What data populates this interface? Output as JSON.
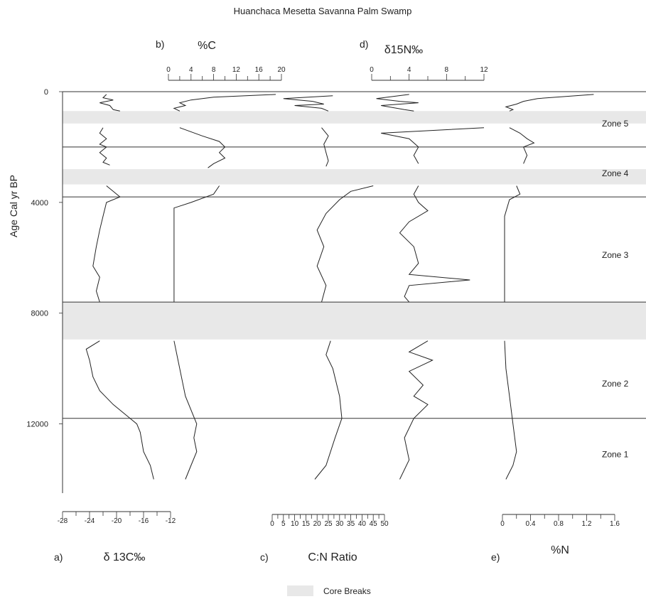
{
  "chart_data": {
    "type": "line",
    "title": "Huanchaca Mesetta Savanna Palm Swamp",
    "ylabel": "Age Cal yr BP",
    "ylim": [
      0,
      14500
    ],
    "y_ticks": [
      0,
      4000,
      8000,
      12000
    ],
    "legend": {
      "label": "Core Breaks",
      "color": "#e8e8e8",
      "placement": "bottom"
    },
    "core_breaks": [
      [
        700,
        1150
      ],
      [
        2800,
        3350
      ],
      [
        7600,
        8950
      ]
    ],
    "zone_boundaries": [
      2000,
      3800,
      7600,
      11800
    ],
    "zones": [
      {
        "label": "Zone 5",
        "age": 1150
      },
      {
        "label": "Zone 4",
        "age": 2950
      },
      {
        "label": "Zone 3",
        "age": 5900
      },
      {
        "label": "Zone 2",
        "age": 10550
      },
      {
        "label": "Zone 1",
        "age": 13100
      }
    ],
    "panels": [
      {
        "letter": "a)",
        "xlabel": "δ 13C‰",
        "axis": "bottom",
        "xlim": [
          -28,
          -12
        ],
        "ticks": [
          -28,
          -24,
          -20,
          -16,
          -12
        ],
        "series": [
          [
            [
              -21.5,
              100
            ],
            [
              -22,
              220
            ],
            [
              -20.5,
              300
            ],
            [
              -22.5,
              400
            ],
            [
              -21,
              500
            ],
            [
              -20.5,
              650
            ],
            [
              -19.5,
              700
            ]
          ],
          [
            [
              -22,
              1300
            ],
            [
              -22.5,
              1500
            ],
            [
              -21.5,
              1700
            ],
            [
              -22.5,
              1900
            ],
            [
              -21.5,
              2000
            ],
            [
              -22.5,
              2200
            ],
            [
              -21.5,
              2400
            ],
            [
              -22,
              2550
            ],
            [
              -21,
              2650
            ]
          ],
          [
            [
              -21.5,
              3400
            ],
            [
              -20.5,
              3600
            ],
            [
              -19.5,
              3800
            ],
            [
              -21.5,
              4000
            ],
            [
              -22,
              4500
            ],
            [
              -22.5,
              5000
            ],
            [
              -23,
              5600
            ],
            [
              -23.5,
              6300
            ],
            [
              -22.5,
              6700
            ],
            [
              -23,
              7200
            ],
            [
              -22.5,
              7600
            ]
          ],
          [
            [
              -22.5,
              9000
            ],
            [
              -24.5,
              9300
            ],
            [
              -24,
              9700
            ],
            [
              -23.5,
              10300
            ],
            [
              -22.5,
              10800
            ],
            [
              -20.5,
              11300
            ],
            [
              -18,
              11800
            ],
            [
              -17,
              12000
            ],
            [
              -16.5,
              12300
            ],
            [
              -16,
              13000
            ],
            [
              -15,
              13500
            ],
            [
              -14.5,
              14000
            ]
          ]
        ]
      },
      {
        "letter": "b)",
        "xlabel": "%C",
        "axis": "top",
        "xlim": [
          0,
          20
        ],
        "ticks": [
          0,
          4,
          8,
          12,
          16,
          20
        ],
        "series": [
          [
            [
              19,
              100
            ],
            [
              8,
              200
            ],
            [
              4,
              300
            ],
            [
              2,
              400
            ],
            [
              3,
              500
            ],
            [
              1,
              600
            ],
            [
              2,
              700
            ]
          ],
          [
            [
              2,
              1300
            ],
            [
              6,
              1600
            ],
            [
              9,
              1800
            ],
            [
              10,
              2000
            ],
            [
              9,
              2200
            ],
            [
              10,
              2400
            ],
            [
              8,
              2600
            ],
            [
              7,
              2750
            ]
          ],
          [
            [
              9,
              3400
            ],
            [
              8,
              3700
            ],
            [
              4,
              4000
            ],
            [
              1,
              4200
            ],
            [
              1,
              6000
            ],
            [
              1,
              7600
            ]
          ],
          [
            [
              1,
              9000
            ],
            [
              2,
              10000
            ],
            [
              3,
              11000
            ],
            [
              5,
              12000
            ],
            [
              4.5,
              12500
            ],
            [
              5,
              13000
            ],
            [
              4,
              13500
            ],
            [
              3,
              14000
            ]
          ]
        ]
      },
      {
        "letter": "c)",
        "xlabel": "C:N Ratio",
        "axis": "bottom",
        "xlim": [
          0,
          50
        ],
        "ticks": [
          0,
          5,
          10,
          15,
          20,
          25,
          30,
          35,
          40,
          45,
          50
        ],
        "series": [
          [
            [
              27,
              150
            ],
            [
              5,
              250
            ],
            [
              18,
              350
            ],
            [
              23,
              450
            ],
            [
              10,
              500
            ],
            [
              22,
              600
            ],
            [
              25,
              700
            ]
          ],
          [
            [
              22,
              1300
            ],
            [
              25,
              1600
            ],
            [
              23,
              1900
            ],
            [
              24,
              2200
            ],
            [
              25,
              2500
            ],
            [
              24,
              2700
            ]
          ],
          [
            [
              45,
              3400
            ],
            [
              35,
              3600
            ],
            [
              30,
              3900
            ],
            [
              24,
              4400
            ],
            [
              20,
              5000
            ],
            [
              23,
              5600
            ],
            [
              20,
              6300
            ],
            [
              24,
              7000
            ],
            [
              22,
              7600
            ]
          ],
          [
            [
              26,
              9000
            ],
            [
              24,
              9500
            ],
            [
              27,
              10000
            ],
            [
              30,
              11000
            ],
            [
              31,
              11800
            ],
            [
              28,
              12500
            ],
            [
              24,
              13500
            ],
            [
              19,
              14000
            ]
          ]
        ]
      },
      {
        "letter": "d)",
        "xlabel": "δ15N‰",
        "axis": "top",
        "xlim": [
          0,
          12
        ],
        "ticks": [
          0,
          4,
          8,
          12
        ],
        "series": [
          [
            [
              4,
              100
            ],
            [
              0.5,
              250
            ],
            [
              3,
              350
            ],
            [
              5,
              400
            ],
            [
              1,
              500
            ],
            [
              3.5,
              650
            ],
            [
              4.5,
              700
            ]
          ],
          [
            [
              12,
              1300
            ],
            [
              1,
              1500
            ],
            [
              4,
              1700
            ],
            [
              5,
              2000
            ],
            [
              4.5,
              2300
            ],
            [
              5,
              2600
            ]
          ],
          [
            [
              5,
              3400
            ],
            [
              4.5,
              3700
            ],
            [
              5,
              4000
            ],
            [
              6,
              4300
            ],
            [
              4,
              4700
            ],
            [
              3,
              5100
            ],
            [
              4.5,
              5600
            ],
            [
              5,
              6200
            ],
            [
              4,
              6600
            ],
            [
              10.5,
              6800
            ],
            [
              4,
              7000
            ],
            [
              3.5,
              7400
            ],
            [
              4,
              7600
            ]
          ],
          [
            [
              6,
              9000
            ],
            [
              4,
              9400
            ],
            [
              6.5,
              9700
            ],
            [
              4,
              10100
            ],
            [
              5.5,
              10600
            ],
            [
              4.5,
              11000
            ],
            [
              6,
              11300
            ],
            [
              4.5,
              11800
            ],
            [
              3.5,
              12500
            ],
            [
              4,
              13300
            ],
            [
              3,
              14000
            ]
          ]
        ]
      },
      {
        "letter": "e)",
        "xlabel": "%N",
        "axis": "bottom",
        "xlim": [
          0,
          1.6
        ],
        "ticks": [
          0,
          0.4,
          0.8,
          1.2,
          1.6
        ],
        "tick_labels": [
          "0",
          "0.4",
          "0.8",
          "1.2",
          "1.6"
        ],
        "series": [
          [
            [
              1.3,
              100
            ],
            [
              0.5,
              250
            ],
            [
              0.3,
              350
            ],
            [
              0.2,
              450
            ],
            [
              0.05,
              550
            ],
            [
              0.15,
              650
            ],
            [
              0.1,
              700
            ]
          ],
          [
            [
              0.1,
              1300
            ],
            [
              0.25,
              1500
            ],
            [
              0.35,
              1700
            ],
            [
              0.45,
              1850
            ],
            [
              0.3,
              2000
            ],
            [
              0.35,
              2300
            ],
            [
              0.3,
              2600
            ]
          ],
          [
            [
              0.2,
              3400
            ],
            [
              0.25,
              3700
            ],
            [
              0.1,
              3900
            ],
            [
              0.03,
              4500
            ],
            [
              0.03,
              7600
            ]
          ],
          [
            [
              0.03,
              9000
            ],
            [
              0.05,
              10000
            ],
            [
              0.1,
              11000
            ],
            [
              0.15,
              12000
            ],
            [
              0.2,
              13000
            ],
            [
              0.15,
              13500
            ],
            [
              0.05,
              14000
            ]
          ]
        ]
      }
    ]
  }
}
